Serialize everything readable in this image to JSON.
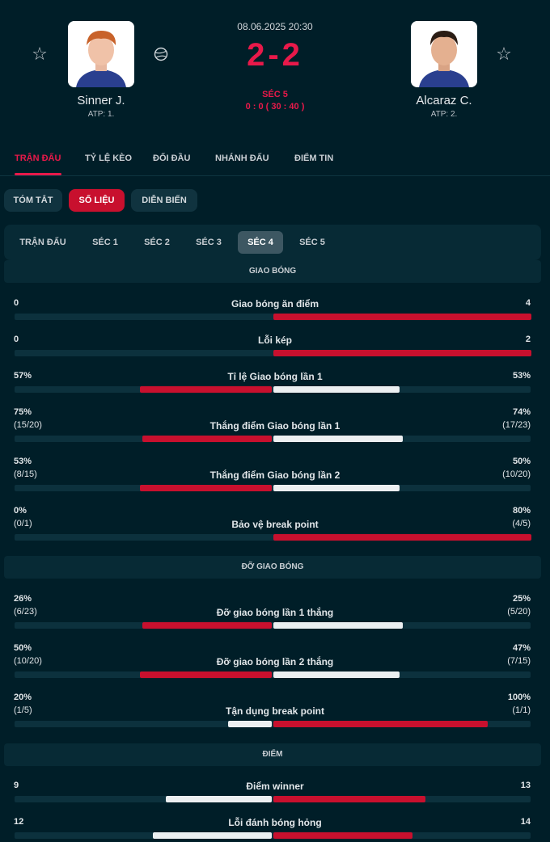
{
  "match": {
    "datetime": "08.06.2025 20:30",
    "score": "2-2",
    "set_label": "SÉC 5",
    "game_score": "0 : 0 ( 30 : 40 )",
    "player1": {
      "name": "Sinner J.",
      "rank": "ATP: 1."
    },
    "player2": {
      "name": "Alcaraz C.",
      "rank": "ATP: 2."
    }
  },
  "main_tabs": [
    "TRẬN ĐẤU",
    "TỶ LỆ KÈO",
    "ĐỐI ĐẦU",
    "NHÁNH ĐẤU",
    "ĐIỂM TIN"
  ],
  "sub_tabs": [
    "TÓM TẮT",
    "SỐ LIỆU",
    "DIỄN BIẾN"
  ],
  "set_tabs": [
    "TRẬN ĐẤU",
    "SÉC 1",
    "SÉC 2",
    "SÉC 3",
    "SÉC 4",
    "SÉC 5"
  ],
  "sections": {
    "serve": "GIAO BÓNG",
    "return": "ĐỠ GIAO BÓNG",
    "points": "ĐIỂM"
  },
  "stats": [
    {
      "label": "Giao bóng ăn điểm",
      "left": "0",
      "left_sub": "",
      "right": "4",
      "right_sub": "",
      "left_frac": 0,
      "right_frac": 1.0,
      "left_color": "red",
      "right_color": "red"
    },
    {
      "label": "Lỗi kép",
      "left": "0",
      "left_sub": "",
      "right": "2",
      "right_sub": "",
      "left_frac": 0,
      "right_frac": 1.0,
      "left_color": "red",
      "right_color": "red"
    },
    {
      "label": "Tỉ lệ Giao bóng lần 1",
      "left": "57%",
      "left_sub": "",
      "right": "53%",
      "right_sub": "",
      "left_frac": 0.51,
      "right_frac": 0.49,
      "left_color": "red",
      "right_color": "white"
    },
    {
      "label": "Thắng điểm Giao bóng lần 1",
      "left": "75%",
      "left_sub": "(15/20)",
      "right": "74%",
      "right_sub": "(17/23)",
      "left_frac": 0.5,
      "right_frac": 0.5,
      "left_color": "red",
      "right_color": "white"
    },
    {
      "label": "Thắng điểm Giao bóng lần 2",
      "left": "53%",
      "left_sub": "(8/15)",
      "right": "50%",
      "right_sub": "(10/20)",
      "left_frac": 0.51,
      "right_frac": 0.49,
      "left_color": "red",
      "right_color": "white"
    },
    {
      "label": "Bảo vệ break point",
      "left": "0%",
      "left_sub": "(0/1)",
      "right": "80%",
      "right_sub": "(4/5)",
      "left_frac": 0,
      "right_frac": 1.0,
      "left_color": "red",
      "right_color": "red"
    },
    {
      "label": "Đỡ giao bóng lần 1 thắng",
      "left": "26%",
      "left_sub": "(6/23)",
      "right": "25%",
      "right_sub": "(5/20)",
      "left_frac": 0.5,
      "right_frac": 0.5,
      "left_color": "red",
      "right_color": "white"
    },
    {
      "label": "Đỡ giao bóng lần 2 thắng",
      "left": "50%",
      "left_sub": "(10/20)",
      "right": "47%",
      "right_sub": "(7/15)",
      "left_frac": 0.51,
      "right_frac": 0.49,
      "left_color": "red",
      "right_color": "white"
    },
    {
      "label": "Tận dụng break point",
      "left": "20%",
      "left_sub": "(1/5)",
      "right": "100%",
      "right_sub": "(1/1)",
      "left_frac": 0.17,
      "right_frac": 0.83,
      "left_color": "white",
      "right_color": "red"
    },
    {
      "label": "Điểm winner",
      "left": "9",
      "left_sub": "",
      "right": "13",
      "right_sub": "",
      "left_frac": 0.41,
      "right_frac": 0.59,
      "left_color": "white",
      "right_color": "red"
    },
    {
      "label": "Lỗi đánh bóng hỏng",
      "left": "12",
      "left_sub": "",
      "right": "14",
      "right_sub": "",
      "left_frac": 0.46,
      "right_frac": 0.54,
      "left_color": "white",
      "right_color": "red"
    }
  ],
  "colors": {
    "accent": "#e8194a",
    "bar_red": "#c8102e",
    "bar_white": "#eceff1",
    "background": "#001e28"
  }
}
